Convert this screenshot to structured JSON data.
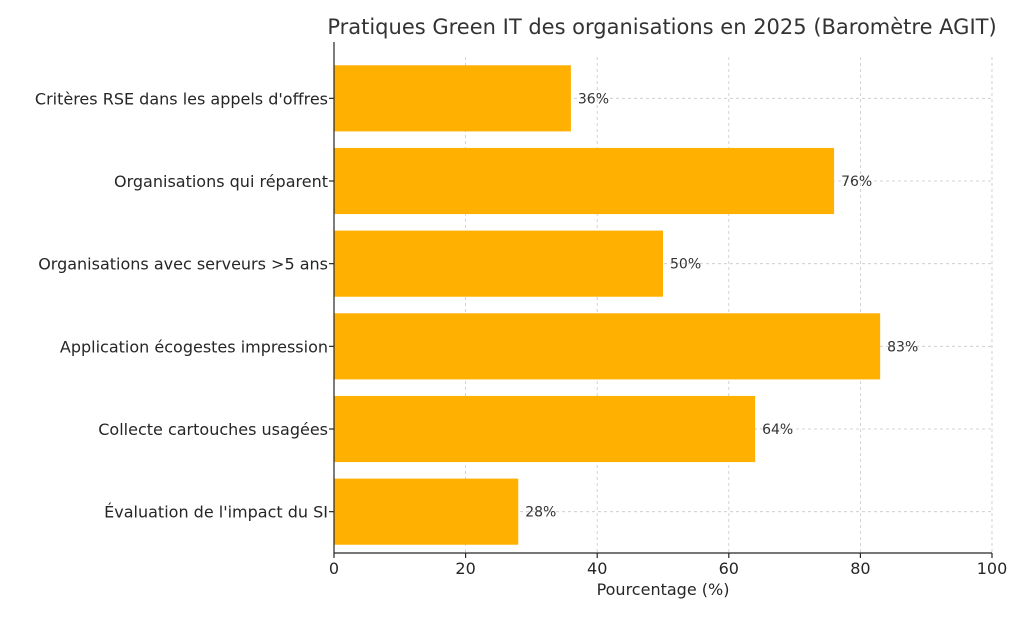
{
  "chart_data": {
    "type": "bar",
    "orientation": "horizontal",
    "title": "Pratiques Green IT des organisations en 2025 (Baromètre AGIT)",
    "xlabel": "Pourcentage (%)",
    "ylabel": "",
    "categories": [
      "Critères RSE dans les appels d'offres",
      "Organisations qui réparent",
      "Organisations avec serveurs >5 ans",
      "Application écogestes impression",
      "Collecte cartouches usagées",
      "Évaluation de l'impact du SI"
    ],
    "values": [
      36,
      76,
      50,
      83,
      64,
      28
    ],
    "data_labels": [
      "36%",
      "76%",
      "50%",
      "83%",
      "64%",
      "28%"
    ],
    "xlim": [
      0,
      100
    ],
    "xticks": [
      0,
      20,
      40,
      60,
      80,
      100
    ],
    "xtick_labels": [
      "0",
      "20",
      "40",
      "60",
      "80",
      "100"
    ],
    "grid": true,
    "bar_color": "#FFB000"
  }
}
